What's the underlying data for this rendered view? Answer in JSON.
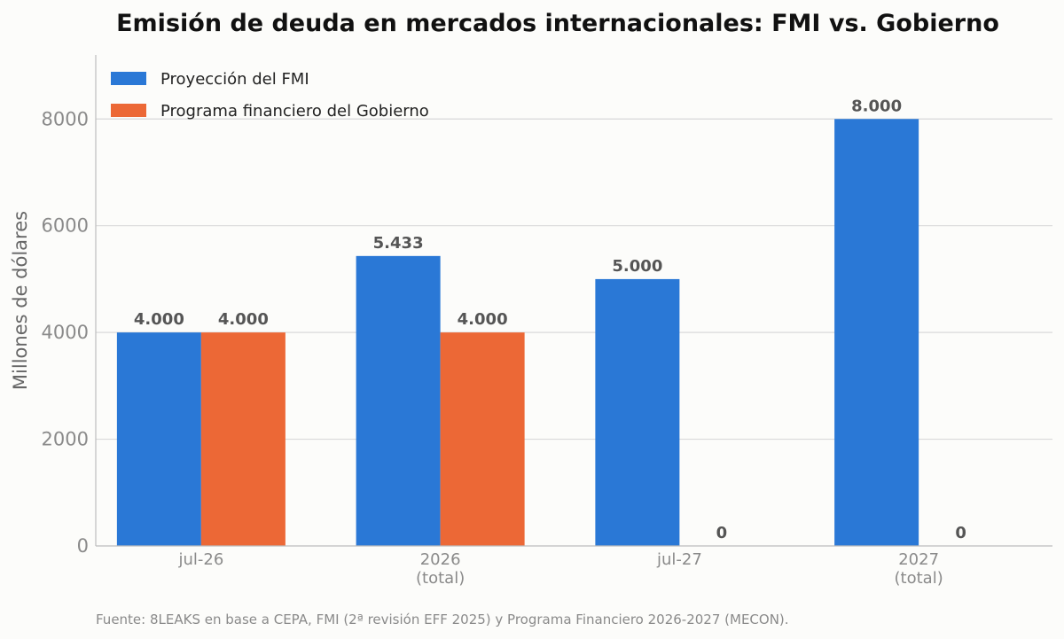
{
  "chart_data": {
    "type": "bar",
    "title": "Emisión de deuda en mercados internacionales: FMI vs. Gobierno",
    "ylabel": "Millones de dólares",
    "xlabel": "",
    "categories": [
      [
        "jul-26"
      ],
      [
        "2026",
        "(total)"
      ],
      [
        "jul-27"
      ],
      [
        "2027",
        "(total)"
      ]
    ],
    "series": [
      {
        "name": "Proyección del FMI",
        "color": "#2a78d6",
        "values": [
          4000,
          5433,
          5000,
          8000
        ],
        "labels": [
          "4.000",
          "5.433",
          "5.000",
          "8.000"
        ]
      },
      {
        "name": "Programa financiero del Gobierno",
        "color": "#ec6836",
        "values": [
          4000,
          4000,
          0,
          0
        ],
        "labels": [
          "4.000",
          "4.000",
          "0",
          "0"
        ]
      }
    ],
    "ylim": [
      0,
      9200
    ],
    "yticks": [
      0,
      2000,
      4000,
      6000,
      8000
    ],
    "ytick_labels": [
      "0",
      "2000",
      "4000",
      "6000",
      "8000"
    ],
    "grid": "horizontal",
    "legend_position": "top-left",
    "source": "Fuente: 8LEAKS en base a CEPA, FMI (2ª revisión EFF 2025) y Programa Financiero 2026-2027 (MECON)."
  }
}
